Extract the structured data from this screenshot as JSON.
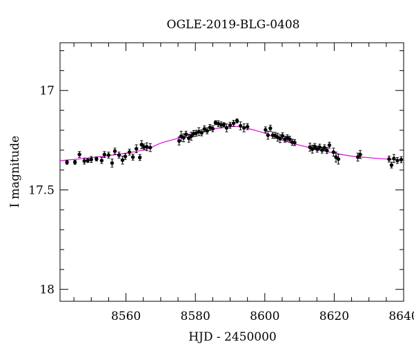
{
  "chart_data": {
    "type": "scatter",
    "title": "OGLE-2019-BLG-0408",
    "xlabel": "HJD - 2450000",
    "ylabel": "I magnitude",
    "xlim": [
      8541,
      8640
    ],
    "ylim": [
      18.06,
      16.76
    ],
    "y_inverted": true,
    "x_ticks": [
      8560,
      8580,
      8600,
      8620,
      8640
    ],
    "x_tick_labels": [
      "8560",
      "8580",
      "8600",
      "8620",
      "8640"
    ],
    "y_ticks": [
      17,
      17.5,
      18
    ],
    "y_tick_labels": [
      "17",
      "17.5",
      "18"
    ],
    "x_minor_step": 5,
    "y_minor_step": 0.1,
    "grid": false,
    "model_color": "#e000e0",
    "point_color": "#000000",
    "model": {
      "x": [
        8541,
        8550,
        8560,
        8566,
        8570,
        8575,
        8580,
        8585,
        8590,
        8593,
        8596,
        8600,
        8605,
        8610,
        8615,
        8620,
        8625,
        8630,
        8635,
        8640
      ],
      "y": [
        17.353,
        17.338,
        17.315,
        17.295,
        17.265,
        17.24,
        17.215,
        17.195,
        17.182,
        17.182,
        17.195,
        17.215,
        17.25,
        17.275,
        17.295,
        17.315,
        17.33,
        17.338,
        17.345,
        17.35
      ]
    },
    "series": [
      {
        "x": [
          8543,
          8545.3,
          8546.6,
          8548,
          8549,
          8550,
          8551.5,
          8553,
          8553.8,
          8555,
          8556,
          8556.8,
          8558,
          8559,
          8559.8,
          8561,
          8562,
          8563,
          8564,
          8564.5,
          8565.2,
          8566,
          8567,
          8575.3,
          8575.9,
          8576.6,
          8577.3,
          8578.1,
          8578.8,
          8579.5,
          8580.2,
          8581,
          8581.8,
          8582.6,
          8583.4,
          8584.2,
          8585,
          8585.8,
          8586.6,
          8587.4,
          8588.2,
          8589,
          8590,
          8591,
          8592,
          8593,
          8594,
          8595,
          8600.2,
          8600.9,
          8601.6,
          8602.3,
          8603,
          8603.7,
          8604.4,
          8605.1,
          8605.8,
          8606.5,
          8607.2,
          8607.9,
          8608.6,
          8613,
          8613.7,
          8614.4,
          8615.1,
          8615.8,
          8616.5,
          8617.2,
          8617.9,
          8618.6,
          8619.8,
          8620.5,
          8621.2,
          8626.8,
          8627.5,
          8635.8,
          8636.5,
          8637.2,
          8638.2,
          8639.3
        ],
        "y": [
          17.361,
          17.361,
          17.322,
          17.355,
          17.352,
          17.347,
          17.344,
          17.352,
          17.322,
          17.325,
          17.365,
          17.305,
          17.325,
          17.35,
          17.332,
          17.31,
          17.335,
          17.293,
          17.337,
          17.272,
          17.284,
          17.283,
          17.287,
          17.254,
          17.23,
          17.238,
          17.22,
          17.24,
          17.23,
          17.217,
          17.215,
          17.207,
          17.213,
          17.193,
          17.203,
          17.186,
          17.192,
          17.162,
          17.167,
          17.173,
          17.172,
          17.188,
          17.175,
          17.165,
          17.153,
          17.178,
          17.188,
          17.182,
          17.198,
          17.225,
          17.19,
          17.225,
          17.226,
          17.235,
          17.242,
          17.228,
          17.245,
          17.238,
          17.245,
          17.26,
          17.262,
          17.285,
          17.295,
          17.282,
          17.295,
          17.285,
          17.3,
          17.288,
          17.302,
          17.275,
          17.31,
          17.335,
          17.345,
          17.335,
          17.322,
          17.345,
          17.375,
          17.342,
          17.352,
          17.348
        ],
        "yerr": [
          0.01,
          0.01,
          0.015,
          0.015,
          0.01,
          0.015,
          0.01,
          0.015,
          0.015,
          0.015,
          0.02,
          0.015,
          0.015,
          0.02,
          0.015,
          0.015,
          0.015,
          0.02,
          0.015,
          0.02,
          0.015,
          0.02,
          0.02,
          0.02,
          0.025,
          0.02,
          0.015,
          0.02,
          0.02,
          0.015,
          0.015,
          0.02,
          0.015,
          0.015,
          0.015,
          0.015,
          0.015,
          0.01,
          0.015,
          0.015,
          0.01,
          0.02,
          0.015,
          0.015,
          0.01,
          0.02,
          0.02,
          0.015,
          0.015,
          0.02,
          0.015,
          0.015,
          0.015,
          0.02,
          0.02,
          0.015,
          0.015,
          0.015,
          0.015,
          0.015,
          0.015,
          0.02,
          0.02,
          0.015,
          0.015,
          0.015,
          0.015,
          0.015,
          0.015,
          0.015,
          0.02,
          0.025,
          0.025,
          0.02,
          0.02,
          0.015,
          0.015,
          0.02,
          0.015,
          0.015
        ]
      }
    ]
  }
}
